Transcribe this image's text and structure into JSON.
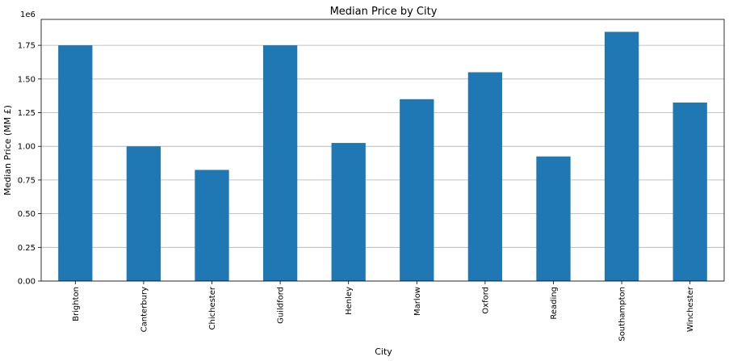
{
  "chart_data": {
    "type": "bar",
    "title": "Median Price by City",
    "xlabel": "City",
    "ylabel": "Median Price (MM £)",
    "y_offset_label": "1e6",
    "categories": [
      "Brighton",
      "Canterbury",
      "Chichester",
      "Guildford",
      "Henley",
      "Marlow",
      "Oxford",
      "Reading",
      "Southampton",
      "Winchester"
    ],
    "values": [
      1750000,
      1000000,
      825000,
      1750000,
      1025000,
      1350000,
      1550000,
      925000,
      1850000,
      1325000
    ],
    "yticks": [
      0,
      250000,
      500000,
      750000,
      1000000,
      1250000,
      1500000,
      1750000
    ],
    "ytick_labels": [
      "0.00",
      "0.25",
      "0.50",
      "0.75",
      "1.00",
      "1.25",
      "1.50",
      "1.75"
    ],
    "ylim": [
      0,
      1942500
    ],
    "grid": "horizontal",
    "bar_color": "#1f77b4"
  }
}
